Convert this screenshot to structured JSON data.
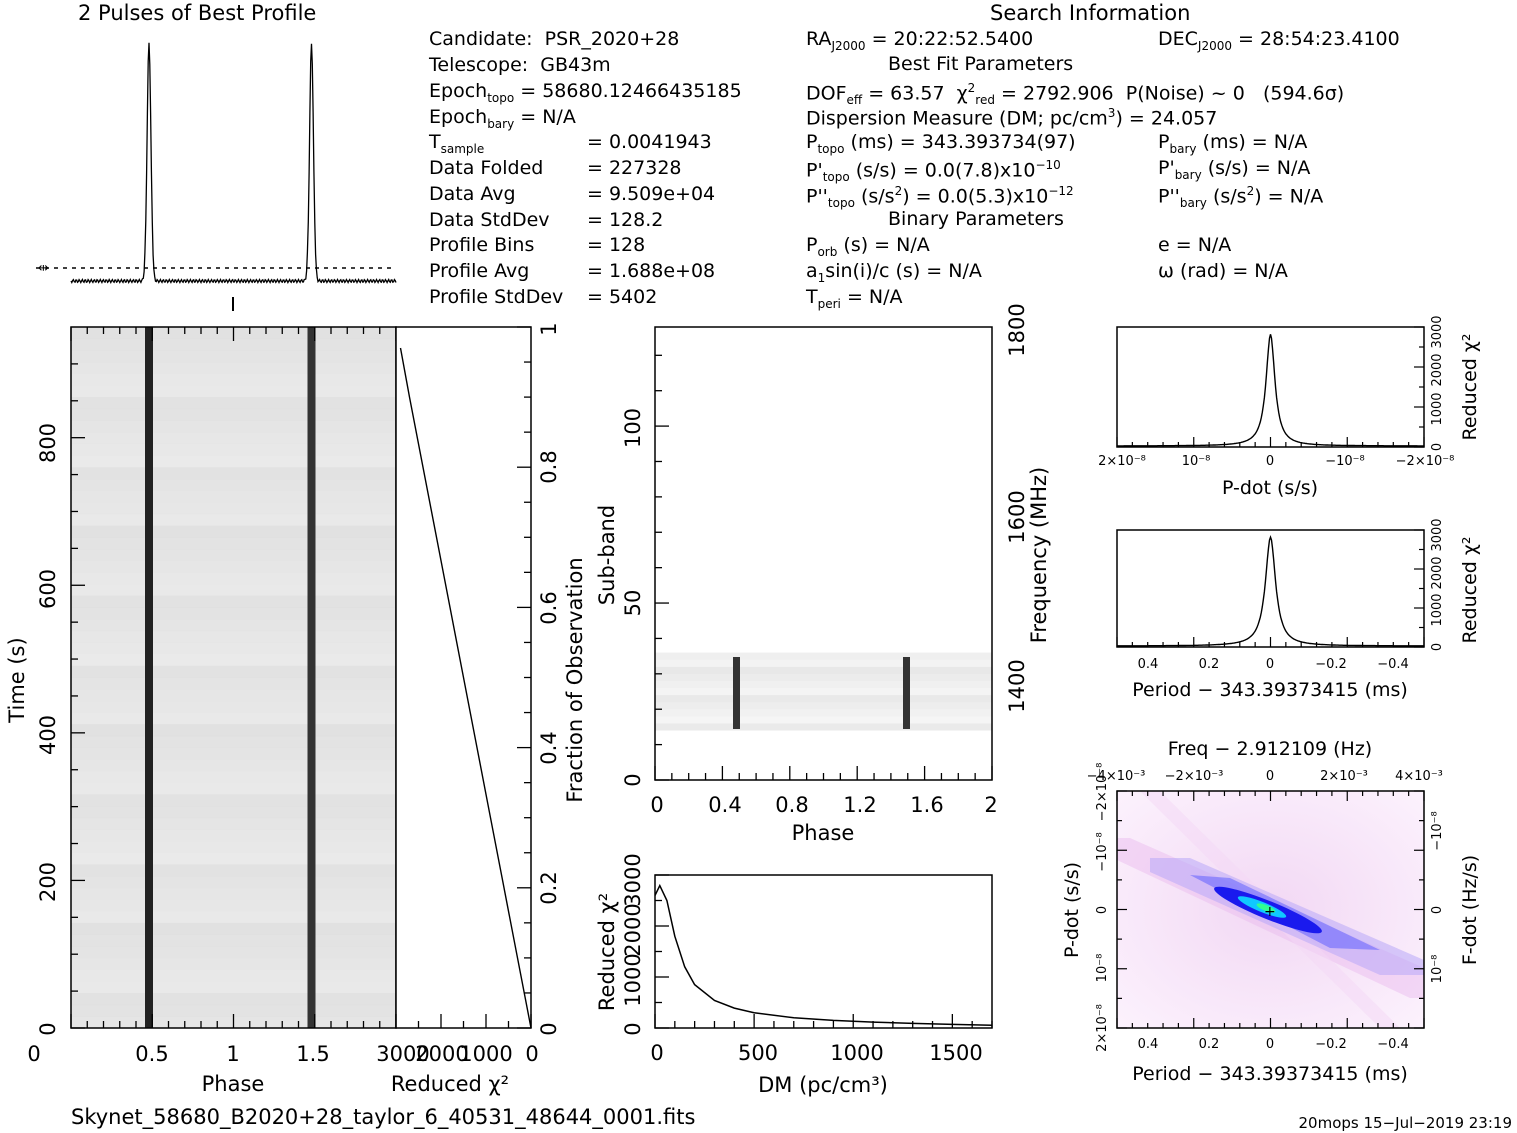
{
  "chart_data": [
    {
      "type": "line",
      "title": "2 Pulses of Best Profile",
      "phase_range": [
        0,
        2
      ],
      "peaks": [
        0.48,
        1.48
      ],
      "baseline": "dotted"
    },
    {
      "type": "heatmap",
      "xlabel": "Phase",
      "ylabel": "Time (s)",
      "xlim": [
        0,
        2
      ],
      "ylim": [
        0,
        950
      ],
      "xticks": [
        "0",
        "0.5",
        "1",
        "1.5"
      ],
      "yticks": [
        "0",
        "200",
        "400",
        "600",
        "800"
      ],
      "pulse_phases": [
        0.48,
        1.48
      ]
    },
    {
      "type": "line",
      "xlabel": "Reduced χ²",
      "ylabel_right": "Fraction of Observation",
      "xlim": [
        3000,
        0
      ],
      "ylim": [
        0,
        1
      ],
      "xticks": [
        "3000",
        "2000",
        "1000",
        "0"
      ],
      "yticks": [
        "0",
        "0.2",
        "0.4",
        "0.6",
        "0.8",
        "1"
      ],
      "x": [
        0,
        300,
        600,
        900,
        1200,
        1500,
        1800,
        2100,
        2400,
        2700,
        2900
      ],
      "y": [
        0.0,
        0.1,
        0.2,
        0.3,
        0.4,
        0.5,
        0.6,
        0.7,
        0.8,
        0.9,
        0.97
      ]
    },
    {
      "type": "heatmap",
      "xlabel": "Phase",
      "ylabel": "Sub-band",
      "ylabel_right": "Frequency (MHz)",
      "xlim": [
        0,
        2
      ],
      "ylim": [
        0,
        128
      ],
      "xticks": [
        "0",
        "0.4",
        "0.8",
        "1.2",
        "1.6",
        "2"
      ],
      "yticks": [
        "0",
        "50",
        "100"
      ],
      "right_ticks": [
        "1400",
        "1600",
        "1800"
      ],
      "active_subbands": [
        14,
        35
      ],
      "pulse_phases": [
        0.48,
        1.48
      ]
    },
    {
      "type": "line",
      "xlabel": "DM (pc/cm³)",
      "ylabel": "Reduced χ²",
      "xlim": [
        0,
        1700
      ],
      "ylim": [
        0,
        3000
      ],
      "xticks": [
        "0",
        "500",
        "1000",
        "1500"
      ],
      "yticks": [
        "0",
        "1000",
        "2000",
        "3000"
      ],
      "x": [
        0,
        24,
        60,
        100,
        150,
        200,
        300,
        400,
        500,
        700,
        900,
        1100,
        1300,
        1500,
        1700
      ],
      "y": [
        2600,
        2793,
        2500,
        1800,
        1200,
        850,
        540,
        390,
        300,
        200,
        150,
        115,
        90,
        70,
        55
      ]
    },
    {
      "type": "line",
      "xlabel": "P-dot (s/s)",
      "ylabel": "Reduced χ²",
      "xlim": [
        2e-08,
        -2e-08
      ],
      "ylim": [
        0,
        3000
      ],
      "xticks": [
        "2×10⁻⁸",
        "10⁻⁸",
        "0",
        "−10⁻⁸",
        "−2×10⁻⁸"
      ],
      "yticks": [
        "0",
        "1000",
        "2000",
        "3000"
      ],
      "peak": 2793
    },
    {
      "type": "line",
      "xlabel": "Period − 343.39373415 (ms)",
      "ylabel": "Reduced χ²",
      "xlim": [
        0.5,
        -0.5
      ],
      "ylim": [
        0,
        3000
      ],
      "xticks": [
        "0.4",
        "0.2",
        "0",
        "−0.2",
        "−0.4"
      ],
      "yticks": [
        "0",
        "1000",
        "2000",
        "3000"
      ],
      "peak": 2793
    },
    {
      "type": "heatmap",
      "title": "Freq − 2.912109 (Hz)",
      "xlabel": "Period − 343.39373415 (ms)",
      "ylabel": "P-dot (s/s)",
      "ylabel_right": "F-dot (Hz/s)",
      "xlim": [
        0.5,
        -0.5
      ],
      "xticks": [
        "0.4",
        "0.2",
        "0",
        "−0.2",
        "−0.4"
      ],
      "top_ticks": [
        "−4×10⁻³",
        "−2×10⁻³",
        "0",
        "2×10⁻³",
        "4×10⁻³"
      ],
      "yticks": [
        "2×10⁻⁸",
        "10⁻⁸",
        "0",
        "−10⁻⁸",
        "−2×10⁻⁸"
      ],
      "right_ticks": [
        "10⁻⁸",
        "0",
        "−10⁻⁸"
      ]
    }
  ],
  "info": {
    "header": "Search Information",
    "candidate_label": "Candidate:",
    "candidate": "PSR_2020+28",
    "telescope_label": "Telescope:",
    "telescope": "GB43m",
    "epoch_topo_label": "Epoch",
    "epoch_topo_sub": "topo",
    "epoch_topo": "= 58680.12466435185",
    "epoch_bary_label": "Epoch",
    "epoch_bary_sub": "bary",
    "epoch_bary": "= N/A",
    "tsample_label": "T",
    "tsample_sub": "sample",
    "tsample": "=   0.0041943",
    "folded_label": "Data Folded",
    "folded": "=   227328",
    "avg_label": "Data Avg",
    "avg": "=   9.509e+04",
    "std_label": "Data StdDev",
    "std": "=   128.2",
    "bins_label": "Profile Bins",
    "bins": "=   128",
    "pavg_label": "Profile Avg",
    "pavg": "=   1.688e+08",
    "pstd_label": "Profile StdDev",
    "pstd": "=   5402",
    "ra_label": "RA",
    "ra_sub": "J2000",
    "ra": "= 20:22:52.5400",
    "dec_label": "DEC",
    "dec_sub": "J2000",
    "dec": "= 28:54:23.4100",
    "bestfit_header": "Best Fit Parameters",
    "dof_label": "DOF",
    "dof_sub": "eff",
    "dof": "= 63.57",
    "chi_label": "χ",
    "chi_sub": "red",
    "chi": "= 2792.906",
    "pnoise": "P(Noise) ~ 0",
    "sigma": "(594.6σ)",
    "dm_line": "Dispersion Measure (DM; pc/cm",
    "dm_value": ") = 24.057",
    "ptopo_label": "P",
    "ptopo_sub": "topo",
    "ptopo": "(ms) =  343.393734(97)",
    "pbary_label": "P",
    "pbary_sub": "bary",
    "pbary": "(ms) = N/A",
    "pdtopo": "(s/s) = 0.0(7.8)x10",
    "pdtopo_exp": "−10",
    "pdbary": "(s/s) = N/A",
    "pddtopo": "(s/s",
    "pddtopo_rest": ") = 0.0(5.3)x10",
    "pddtopo_exp": "−12",
    "pddbary": "(s/s",
    "pddbary_rest": ") = N/A",
    "binary_header": "Binary Parameters",
    "porb_label": "P",
    "porb_sub": "orb",
    "porb": "(s) = N/A",
    "ecc": "e = N/A",
    "a1": "a",
    "a1_sub": "1",
    "a1_rest": "sin(i)/c (s) = N/A",
    "omega": "ω (rad) = N/A",
    "tperi_label": "T",
    "tperi_sub": "peri",
    "tperi": "= N/A"
  },
  "footer": {
    "filename": "Skynet_58680_B2020+28_taylor_6_40531_48644_0001.fits",
    "stamp": "20mops  15−Jul−2019 23:19"
  }
}
